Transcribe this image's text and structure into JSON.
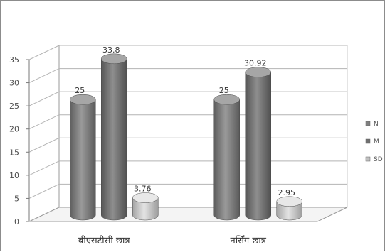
{
  "chart_data": {
    "type": "bar",
    "title": "",
    "xlabel": "",
    "ylabel": "",
    "ylim": [
      0,
      35
    ],
    "yticks": [
      0,
      5,
      10,
      15,
      20,
      25,
      30,
      35
    ],
    "grid": true,
    "style": "3d-cylinder",
    "legend_position": "right",
    "categories": [
      "बीएसटीसी छात्र",
      "नर्सिंग छात्र"
    ],
    "series": [
      {
        "name": "N",
        "values": [
          25,
          25
        ],
        "labels": [
          "25",
          "25"
        ],
        "color": "#7f7f7f"
      },
      {
        "name": "M",
        "values": [
          33.8,
          30.92
        ],
        "labels": [
          "33.8",
          "30.92"
        ],
        "color": "#6f6f6f"
      },
      {
        "name": "SD",
        "values": [
          3.76,
          2.95
        ],
        "labels": [
          "3.76",
          "2.95"
        ],
        "color": "#c0c0c0"
      }
    ]
  }
}
